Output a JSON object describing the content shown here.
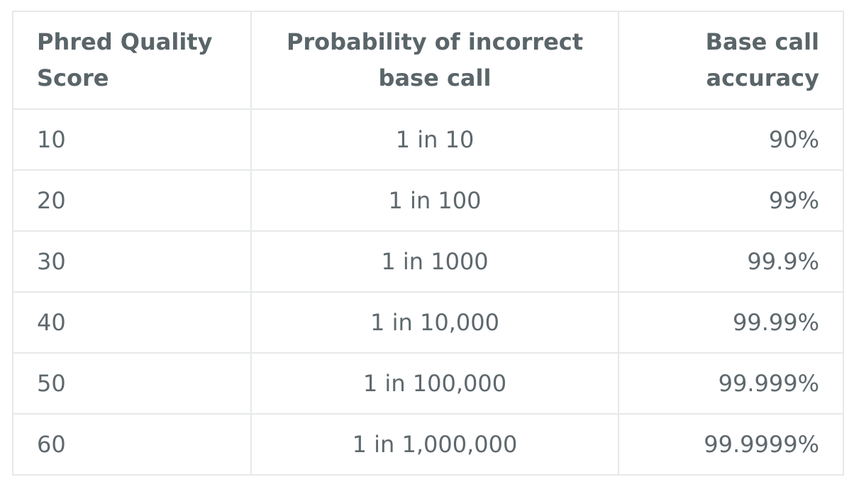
{
  "table": {
    "headers": {
      "score": "Phred Quality Score",
      "probability": "Probability of incorrect base call",
      "accuracy": "Base call accuracy"
    },
    "rows": [
      {
        "score": "10",
        "probability": "1 in 10",
        "accuracy": "90%"
      },
      {
        "score": "20",
        "probability": "1 in 100",
        "accuracy": "99%"
      },
      {
        "score": "30",
        "probability": "1 in 1000",
        "accuracy": "99.9%"
      },
      {
        "score": "40",
        "probability": "1 in 10,000",
        "accuracy": "99.99%"
      },
      {
        "score": "50",
        "probability": "1 in 100,000",
        "accuracy": "99.999%"
      },
      {
        "score": "60",
        "probability": "1 in 1,000,000",
        "accuracy": "99.9999%"
      }
    ]
  }
}
